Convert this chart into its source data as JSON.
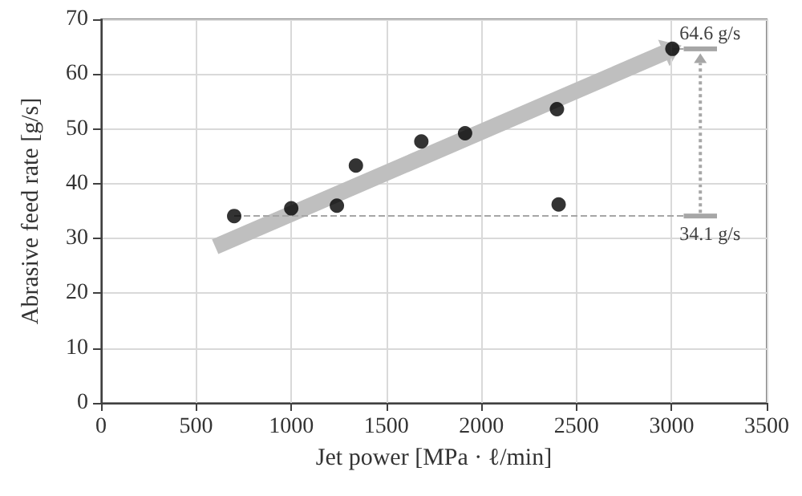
{
  "chart_data": {
    "type": "scatter",
    "xlabel": "Jet power [MPa · ℓ/min]",
    "ylabel": "Abrasive feed rate [g/s]",
    "xlim": [
      0,
      3500
    ],
    "xticks": [
      0,
      500,
      1000,
      1500,
      2000,
      2500,
      3000,
      3500
    ],
    "ylim": [
      0,
      70
    ],
    "yticks": [
      0,
      10,
      20,
      30,
      40,
      50,
      60,
      70
    ],
    "grid": true,
    "series": [
      {
        "color": "#000000",
        "marker": "circle",
        "x": [
          700,
          1000,
          1240,
          1340,
          1684,
          1914,
          2397,
          2406,
          3004
        ],
        "values": [
          34.1,
          35.5,
          36,
          43.3,
          47.7,
          49.2,
          53.6,
          36.2,
          64.6
        ]
      },
      {
        "type": "line",
        "color": "#bfbfbf",
        "x": [
          600,
          2990
        ],
        "values": [
          28.5,
          64.3
        ]
      }
    ],
    "ref_lines": [
      {
        "axis": "y",
        "value": 64.6,
        "label": "64.6 g/s",
        "color": "#a6a6a6",
        "line_style": "solid"
      },
      {
        "axis": "y",
        "value": 34.1,
        "label": "34.1 g/s",
        "color": "#a6a6a6",
        "line_style": "dashed"
      }
    ]
  }
}
